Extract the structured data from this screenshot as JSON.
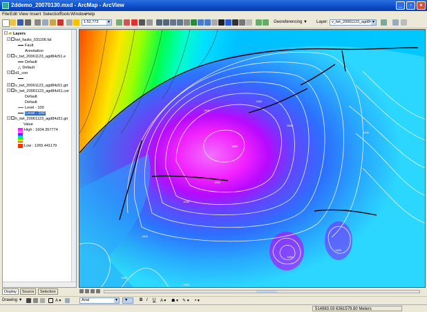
{
  "window": {
    "title": "2ddemo_20070130.mxd - ArcMap - ArcView",
    "colors": {
      "title_bar": "#0b4cc7",
      "close_button": "#e0482c"
    }
  },
  "menu": [
    "File",
    "Edit",
    "View",
    "Insert",
    "Selection",
    "Tools",
    "Window",
    "Help"
  ],
  "toolbar": {
    "scale_value": "1:52,773",
    "georeferencing_label": "Georeferencing ▼",
    "layer_label": "Layer:",
    "layer_value": "v_twt_20061123_agd84z51"
  },
  "toc": {
    "title": "Layers",
    "items": [
      {
        "text": "twt_faults_031106.fal",
        "level": 1,
        "kind": "layer"
      },
      {
        "text": "Fault",
        "level": 3,
        "kind": "legend-line"
      },
      {
        "text": "Annotation",
        "level": 3,
        "kind": "text"
      },
      {
        "text": "v_twt_20061123_agd84z51.e",
        "level": 1,
        "kind": "layer-unchecked"
      },
      {
        "text": "Default",
        "level": 3,
        "kind": "legend-line"
      },
      {
        "text": "Default",
        "level": 3,
        "kind": "legend-triangle"
      },
      {
        "text": "d1_con",
        "level": 1,
        "kind": "layer"
      },
      {
        "text": "",
        "level": 3,
        "kind": "legend-line"
      },
      {
        "text": "v_twt_20061123_agd84z51.grt",
        "level": 1,
        "kind": "layer-unchecked"
      },
      {
        "text": "h_twt_20061123_agd84z51.cor",
        "level": 1,
        "kind": "layer"
      },
      {
        "text": "Default",
        "level": 3,
        "kind": "text"
      },
      {
        "text": "Default",
        "level": 3,
        "kind": "text"
      },
      {
        "text": "Level - 100",
        "level": 3,
        "kind": "legend-line"
      },
      {
        "text": "Level - 100",
        "level": 3,
        "kind": "legend-selected"
      },
      {
        "text": "h_twt_20061123_agd84z51.gri",
        "level": 1,
        "kind": "layer"
      },
      {
        "text": "Value",
        "level": 3,
        "kind": "text"
      },
      {
        "text": "High : 1604.357774",
        "level": 3,
        "kind": "ramp-high"
      },
      {
        "text": "Low : 1265.441179",
        "level": 3,
        "kind": "ramp-low"
      }
    ],
    "tabs": [
      "Display",
      "Source",
      "Selection"
    ]
  },
  "map": {
    "contour_labels": [
      "1400",
      "1350",
      "1500",
      "1550",
      "1450",
      "1400",
      "1550",
      "1400",
      "1450",
      "1400",
      "1350",
      "1300"
    ]
  },
  "drawing": {
    "label": "Drawing ▼",
    "font_name": "Arial",
    "font_size": "▼",
    "bold": "B",
    "italic": "I",
    "underline": "U"
  },
  "status": {
    "coordinates": "514983.03  6361579.80 Meters"
  }
}
